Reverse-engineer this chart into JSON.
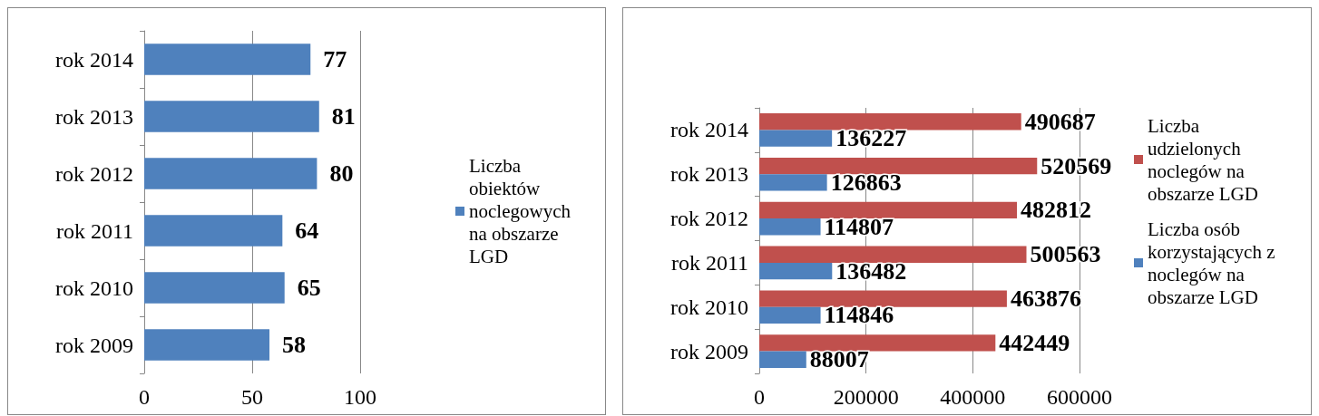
{
  "chart_data": [
    {
      "type": "bar",
      "orientation": "horizontal",
      "categories": [
        "rok 2014",
        "rok 2013",
        "rok 2012",
        "rok 2011",
        "rok 2010",
        "rok 2009"
      ],
      "series": [
        {
          "name": "Liczba obiektów noclegowych na obszarze LGD",
          "color": "#4f81bd",
          "values": [
            77,
            81,
            80,
            64,
            65,
            58
          ]
        }
      ],
      "xlim": [
        0,
        100
      ],
      "xticks": [
        0,
        50,
        100
      ],
      "grid": "x",
      "legend": "right",
      "data_labels": true
    },
    {
      "type": "bar",
      "orientation": "horizontal",
      "categories": [
        "rok 2014",
        "rok 2013",
        "rok 2012",
        "rok 2011",
        "rok 2010",
        "rok 2009"
      ],
      "series": [
        {
          "name": "Liczba udzielonych noclegów na obszarze LGD",
          "color": "#c0504d",
          "values": [
            490687,
            520569,
            482812,
            500563,
            463876,
            442449
          ]
        },
        {
          "name": "Liczba osób korzystających z noclegów na obszarze LGD",
          "color": "#4f81bd",
          "values": [
            136227,
            126863,
            114807,
            136482,
            114846,
            88007
          ]
        }
      ],
      "xlim": [
        0,
        600000
      ],
      "xticks": [
        0,
        200000,
        400000,
        600000
      ],
      "grid": "x",
      "legend": "right",
      "data_labels": true
    }
  ]
}
